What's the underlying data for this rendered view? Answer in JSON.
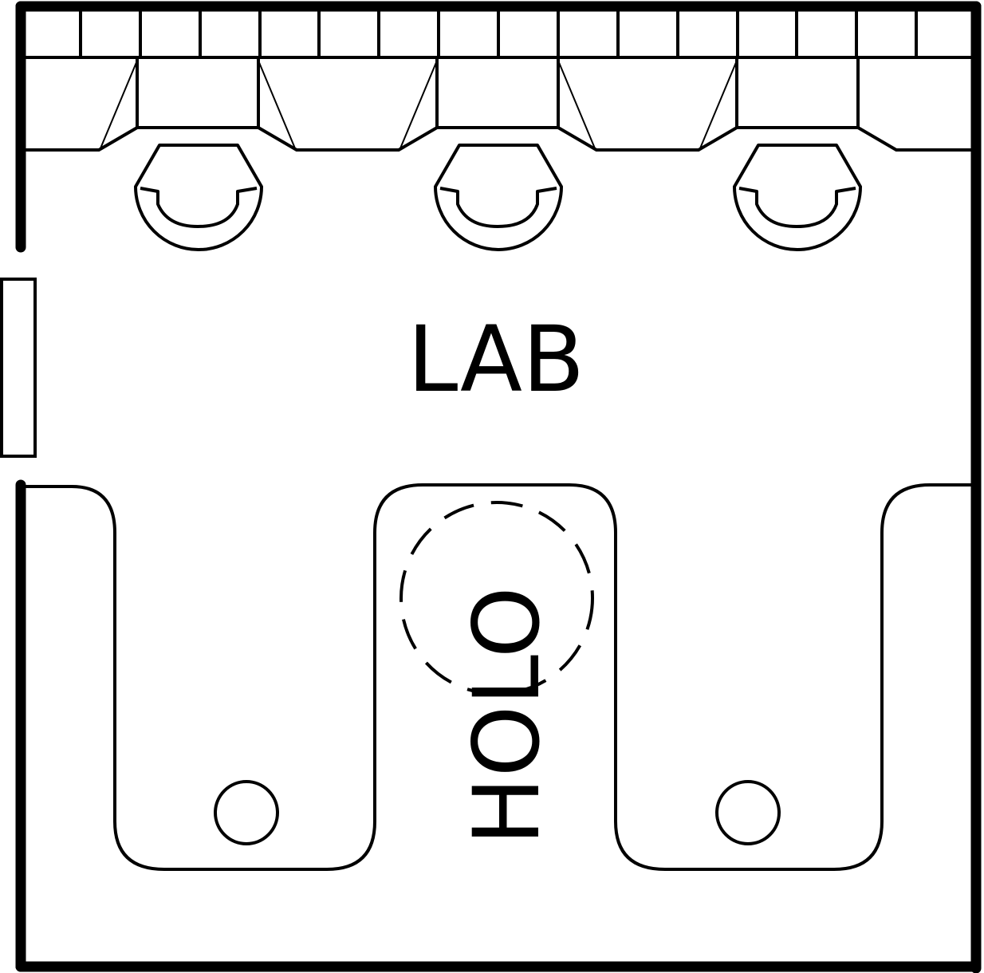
{
  "room": {
    "name": "LAB"
  },
  "holo": {
    "label": "HOLO"
  },
  "colors": {
    "ink": "#000000",
    "paper": "#ffffff"
  },
  "counters": {
    "wall_shelf_cells": 16,
    "workstations": 3,
    "round_stools": 2
  }
}
